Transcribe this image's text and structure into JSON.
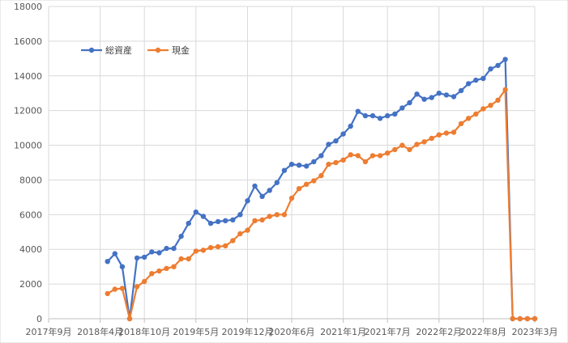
{
  "chart_data": {
    "type": "line",
    "title": "",
    "xlabel": "",
    "ylabel": "",
    "ylim": [
      0,
      18000
    ],
    "y_ticks": [
      0,
      2000,
      4000,
      6000,
      8000,
      10000,
      12000,
      14000,
      16000,
      18000
    ],
    "y_tick_labels": [
      "0",
      "2000",
      "4000",
      "6000",
      "8000",
      "10000",
      "12000",
      "14000",
      "16000",
      "18000"
    ],
    "x_range_months": [
      "2017-09",
      "2023-03"
    ],
    "x_ticks": [
      "2017-09",
      "2018-04",
      "2018-10",
      "2019-05",
      "2019-12",
      "2020-06",
      "2021-01",
      "2021-07",
      "2022-02",
      "2022-08",
      "2023-03"
    ],
    "x_tick_labels": [
      "2017年9月",
      "2018年4月",
      "2018年10月",
      "2019年5月",
      "2019年12月",
      "2020年6月",
      "2021年1月",
      "2021年7月",
      "2022年2月",
      "2022年8月",
      "2023年3月"
    ],
    "grid": true,
    "legend_position": "top-left",
    "x": [
      "2018-05",
      "2018-06",
      "2018-07",
      "2018-08",
      "2018-09",
      "2018-10",
      "2018-11",
      "2018-12",
      "2019-01",
      "2019-02",
      "2019-03",
      "2019-04",
      "2019-05",
      "2019-06",
      "2019-07",
      "2019-08",
      "2019-09",
      "2019-10",
      "2019-11",
      "2019-12",
      "2020-01",
      "2020-02",
      "2020-03",
      "2020-04",
      "2020-05",
      "2020-06",
      "2020-07",
      "2020-08",
      "2020-09",
      "2020-10",
      "2020-11",
      "2020-12",
      "2021-01",
      "2021-02",
      "2021-03",
      "2021-04",
      "2021-05",
      "2021-06",
      "2021-07",
      "2021-08",
      "2021-09",
      "2021-10",
      "2021-11",
      "2021-12",
      "2022-01",
      "2022-02",
      "2022-03",
      "2022-04",
      "2022-05",
      "2022-06",
      "2022-07",
      "2022-08",
      "2022-09",
      "2022-10",
      "2022-11",
      "2022-12",
      "2023-01",
      "2023-02",
      "2023-03"
    ],
    "series": [
      {
        "name": "総資産",
        "color": "#4472c4",
        "values": [
          3300,
          3750,
          3000,
          0,
          3500,
          3550,
          3850,
          3800,
          4050,
          4050,
          4750,
          5500,
          6150,
          5900,
          5500,
          5600,
          5650,
          5700,
          6000,
          6800,
          7650,
          7050,
          7400,
          7850,
          8550,
          8900,
          8850,
          8800,
          9050,
          9400,
          10050,
          10250,
          10650,
          11100,
          11950,
          11700,
          11700,
          11550,
          11700,
          11800,
          12150,
          12450,
          12950,
          12650,
          12750,
          13000,
          12900,
          12800,
          13150,
          13550,
          13750,
          13850,
          14400,
          14600,
          14950,
          0,
          0,
          0,
          0
        ]
      },
      {
        "name": "現金",
        "color": "#ed7d31",
        "values": [
          1450,
          1700,
          1750,
          0,
          1850,
          2150,
          2600,
          2750,
          2900,
          3000,
          3450,
          3450,
          3900,
          3950,
          4100,
          4150,
          4200,
          4500,
          4900,
          5100,
          5650,
          5700,
          5900,
          6000,
          6000,
          6950,
          7500,
          7750,
          7950,
          8250,
          8900,
          9000,
          9150,
          9450,
          9400,
          9050,
          9400,
          9400,
          9550,
          9750,
          10000,
          9750,
          10050,
          10200,
          10400,
          10600,
          10700,
          10750,
          11250,
          11550,
          11800,
          12100,
          12300,
          12600,
          13200,
          0,
          0,
          0,
          0
        ]
      }
    ]
  }
}
